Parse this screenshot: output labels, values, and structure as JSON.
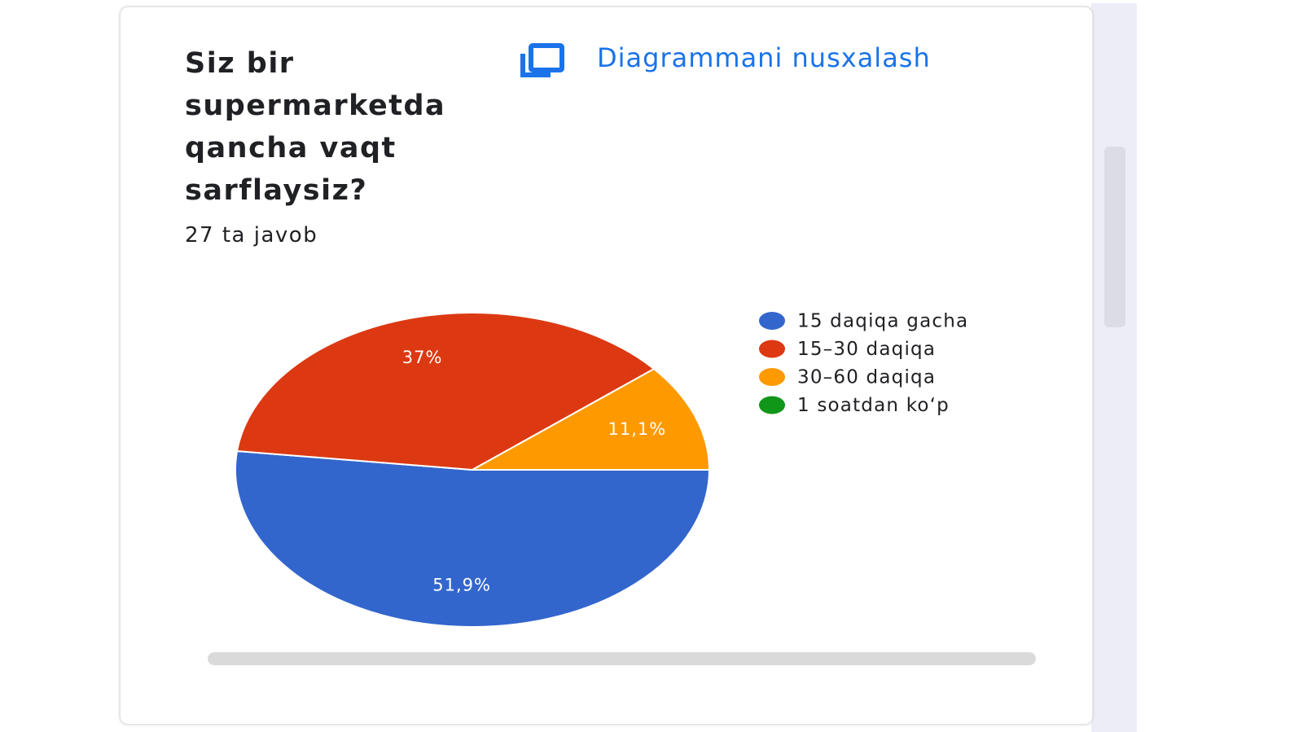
{
  "card": {
    "copy_button": "Diagrammani nusxalash"
  },
  "chart_data": {
    "type": "pie",
    "title": "Siz bir supermarketda qancha vaqt sarflaysiz?",
    "subtitle": "27 ta javob",
    "categories": [
      "15 daqiqa gacha",
      "15–30 daqiqa",
      "30–60 daqiqa",
      "1 soatdan ko‘p"
    ],
    "values": [
      51.9,
      37,
      11.1,
      0
    ],
    "value_labels": [
      "51,9%",
      "37%",
      "11,1%",
      null
    ],
    "colors": [
      "#3366cc",
      "#dc3912",
      "#ff9900",
      "#109618"
    ],
    "legend": "right"
  }
}
